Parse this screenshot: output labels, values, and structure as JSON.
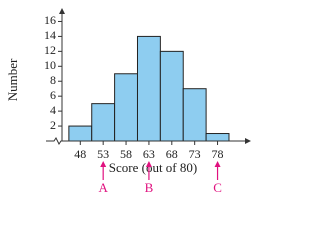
{
  "chart_data": {
    "type": "histogram",
    "x_label": "Score (out of 80)",
    "y_label": "Number",
    "bins": [
      45.5,
      50.5,
      55.5,
      60.5,
      65.5,
      70.5,
      75.5,
      80.5
    ],
    "values": [
      2,
      5,
      9,
      14,
      12,
      7,
      1
    ],
    "color": "#8ecdf0",
    "xlim": [
      44,
      84
    ],
    "xticks": [
      48,
      53,
      58,
      63,
      68,
      73,
      78
    ],
    "ylim": [
      0,
      17
    ],
    "yticks": [
      2,
      4,
      6,
      8,
      10,
      12,
      14,
      16
    ],
    "annotation_color": "#e0117f",
    "annotations": [
      {
        "label": "A",
        "x": 53
      },
      {
        "label": "B",
        "x": 63
      },
      {
        "label": "C",
        "x": 78
      }
    ]
  }
}
